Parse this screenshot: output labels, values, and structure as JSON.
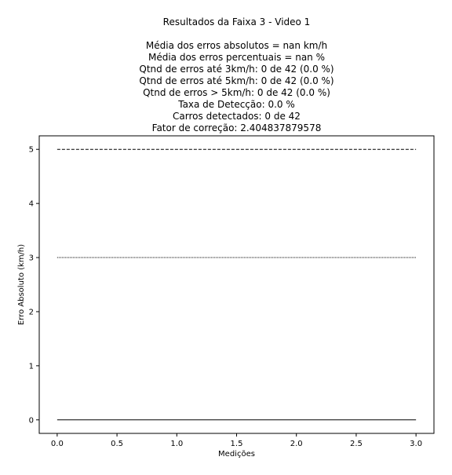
{
  "chart_data": {
    "type": "line",
    "title_lines": [
      "Resultados da Faixa 3 - Video 1",
      "",
      "Média dos erros absolutos =  nan km/h",
      "Média dos erros percentuais = nan %",
      "Qtnd de erros até 3km/h: 0 de 42 (0.0 %)",
      "Qtnd de erros até 5km/h: 0 de 42 (0.0 %)",
      "Qtnd de erros > 5km/h: 0 de 42 (0.0 %)",
      "Taxa de Detecção: 0.0 %",
      "Carros detectados: 0 de 42",
      "Fator de correção: 2.404837879578"
    ],
    "xlabel": "Medições",
    "ylabel": "Erro Absoluto (km/h)",
    "xlim": [
      -0.15,
      3.15
    ],
    "ylim": [
      -0.25,
      5.25
    ],
    "xticks": [
      0.0,
      0.5,
      1.0,
      1.5,
      2.0,
      2.5,
      3.0
    ],
    "xtick_labels": [
      "0.0",
      "0.5",
      "1.0",
      "1.5",
      "2.0",
      "2.5",
      "3.0"
    ],
    "yticks": [
      0,
      1,
      2,
      3,
      4,
      5
    ],
    "ytick_labels": [
      "0",
      "1",
      "2",
      "3",
      "4",
      "5"
    ],
    "grid": false,
    "series": [
      {
        "x": [
          0,
          3
        ],
        "values": [
          5,
          5
        ],
        "color": "#000000",
        "style": "dashed"
      },
      {
        "x": [
          0,
          3
        ],
        "values": [
          3,
          3
        ],
        "color": "#000000",
        "style": "dotted"
      },
      {
        "x": [
          0,
          3
        ],
        "values": [
          0,
          0
        ],
        "color": "#000000",
        "style": "solid"
      }
    ]
  }
}
